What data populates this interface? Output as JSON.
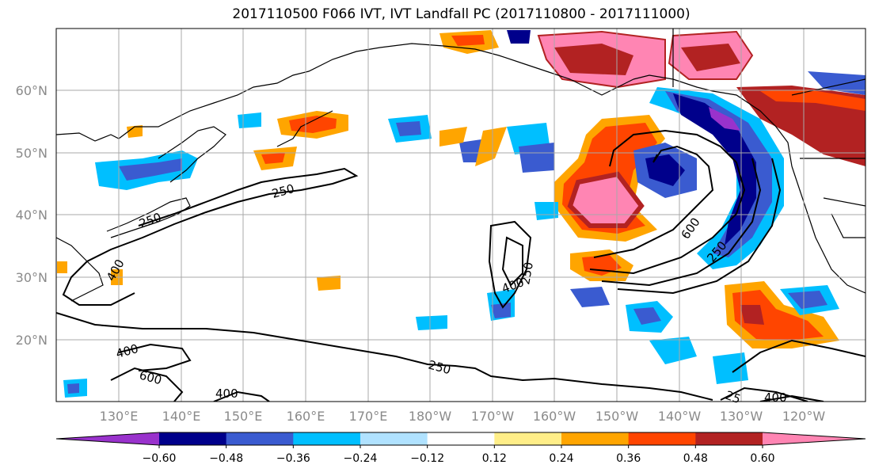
{
  "title": "2017110500 F066 IVT, IVT Landfall PC (2017110800 - 2017111000)",
  "y_labels": [
    "60°N",
    "50°N",
    "40°N",
    "30°N",
    "20°N"
  ],
  "x_labels": [
    "130°E",
    "140°E",
    "150°E",
    "160°E",
    "170°E",
    "180°W",
    "170°W",
    "160°W",
    "150°W",
    "140°W",
    "130°W",
    "120°W"
  ],
  "contour_labels": [
    "250",
    "250",
    "250",
    "250",
    "250",
    "400",
    "400",
    "400",
    "400",
    "600",
    "600",
    "25",
    "400"
  ],
  "colorbar": {
    "ticks": [
      "−0.60",
      "−0.48",
      "−0.36",
      "−0.24",
      "−0.12",
      "0.12",
      "0.24",
      "0.36",
      "0.48",
      "0.60"
    ],
    "colors": [
      "#9932cc",
      "#00008b",
      "#3a5bd0",
      "#00bfff",
      "#b0e2ff",
      "#ffffff",
      "#ffee88",
      "#ffa500",
      "#ff4500",
      "#b22222",
      "#ff85b3"
    ]
  }
}
